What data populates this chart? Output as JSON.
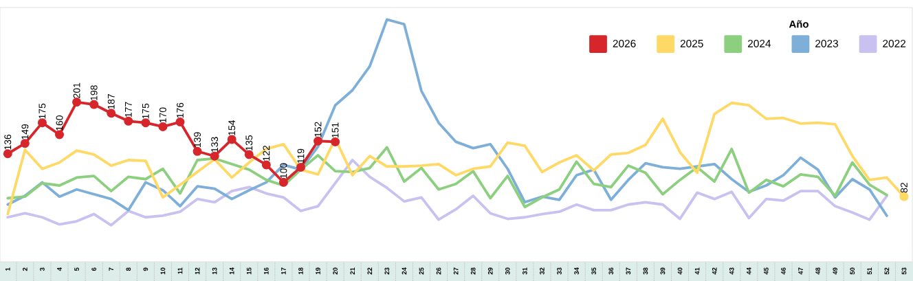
{
  "chart_data": {
    "type": "line",
    "categories": [
      "1",
      "2",
      "3",
      "4",
      "5",
      "6",
      "7",
      "8",
      "9",
      "10",
      "11",
      "12",
      "13",
      "14",
      "15",
      "16",
      "17",
      "18",
      "19",
      "20",
      "21",
      "22",
      "23",
      "24",
      "25",
      "26",
      "27",
      "28",
      "29",
      "30",
      "31",
      "32",
      "33",
      "34",
      "35",
      "36",
      "37",
      "38",
      "39",
      "40",
      "41",
      "42",
      "43",
      "44",
      "45",
      "46",
      "47",
      "48",
      "49",
      "50",
      "51",
      "52",
      "53"
    ],
    "ylim": [
      0,
      320
    ],
    "tick_labels": "x",
    "legend": "top right",
    "legend_title": "Año",
    "series": [
      {
        "name": "2026",
        "color": "#D7262B",
        "marker": "circle",
        "values": [
          136,
          149,
          175,
          160,
          201,
          198,
          187,
          177,
          175,
          170,
          176,
          139,
          133,
          154,
          135,
          122,
          100,
          119,
          152,
          151,
          null,
          null,
          null,
          null,
          null,
          null,
          null,
          null,
          null,
          null,
          null,
          null,
          null,
          null,
          null,
          null,
          null,
          null,
          null,
          null,
          null,
          null,
          null,
          null,
          null,
          null,
          null,
          null,
          null,
          null,
          null,
          null,
          null
        ],
        "value_labels": [
          "136",
          "149",
          "175",
          "160",
          "201",
          "198",
          "187",
          "177",
          "175",
          "170",
          "176",
          "139",
          "133",
          "154",
          "135",
          "122",
          "100",
          "119",
          "152",
          "151",
          null,
          null,
          null,
          null,
          null,
          null,
          null,
          null,
          null,
          null,
          null,
          null,
          null,
          null,
          null,
          null,
          null,
          null,
          null,
          null,
          null,
          null,
          null,
          null,
          null,
          null,
          null,
          null,
          null,
          null,
          null,
          null,
          null
        ]
      },
      {
        "name": "2025",
        "color": "#FFD966",
        "values": [
          60,
          141,
          117,
          125,
          140,
          135,
          121,
          128,
          127,
          81,
          97,
          113,
          129,
          106,
          125,
          142,
          148,
          116,
          110,
          155,
          109,
          133,
          120,
          120,
          121,
          123,
          109,
          117,
          120,
          150,
          146,
          113,
          125,
          134,
          115,
          135,
          137,
          147,
          180,
          138,
          112,
          186,
          200,
          197,
          180,
          181,
          174,
          175,
          173,
          133,
          103,
          106,
          82
        ],
        "value_labels": [
          null,
          null,
          null,
          null,
          null,
          null,
          null,
          null,
          null,
          null,
          null,
          null,
          null,
          null,
          null,
          null,
          null,
          null,
          null,
          null,
          null,
          null,
          null,
          null,
          null,
          null,
          null,
          null,
          null,
          null,
          null,
          null,
          null,
          null,
          null,
          null,
          null,
          null,
          null,
          null,
          null,
          null,
          null,
          null,
          null,
          null,
          null,
          null,
          null,
          null,
          null,
          null,
          "82"
        ]
      },
      {
        "name": "2024",
        "color": "#8CCF7E",
        "values": [
          80,
          82,
          99,
          96,
          106,
          108,
          89,
          107,
          104,
          117,
          86,
          128,
          130,
          123,
          116,
          103,
          96,
          116,
          134,
          114,
          113,
          118,
          144,
          101,
          118,
          91,
          98,
          114,
          80,
          108,
          69,
          81,
          91,
          126,
          98,
          94,
          121,
          112,
          85,
          103,
          119,
          101,
          142,
          87,
          103,
          95,
          110,
          107,
          83,
          125,
          97,
          84,
          null
        ]
      },
      {
        "name": "2023",
        "color": "#7EAFD8",
        "values": [
          72,
          83,
          100,
          82,
          91,
          85,
          79,
          65,
          100,
          90,
          70,
          95,
          92,
          79,
          90,
          100,
          122,
          116,
          145,
          197,
          216,
          246,
          305,
          299,
          215,
          175,
          151,
          143,
          148,
          117,
          75,
          82,
          78,
          109,
          116,
          78,
          103,
          124,
          119,
          117,
          120,
          123,
          104,
          88,
          96,
          109,
          131,
          116,
          81,
          104,
          91,
          58,
          null
        ]
      },
      {
        "name": "2022",
        "color": "#C9C1F0",
        "values": [
          56,
          61,
          56,
          47,
          51,
          60,
          46,
          64,
          56,
          58,
          63,
          79,
          75,
          89,
          94,
          86,
          81,
          64,
          70,
          99,
          128,
          107,
          93,
          76,
          81,
          53,
          66,
          83,
          61,
          54,
          56,
          60,
          63,
          72,
          65,
          65,
          72,
          75,
          72,
          54,
          87,
          79,
          88,
          55,
          79,
          77,
          89,
          89,
          70,
          62,
          53,
          83,
          null
        ]
      }
    ]
  }
}
